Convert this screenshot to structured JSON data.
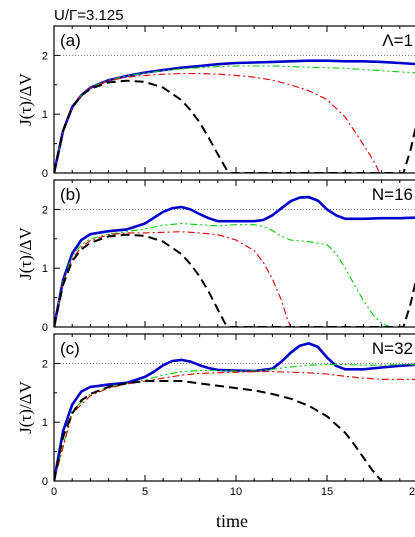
{
  "title": "U/Γ=3.125",
  "xlabel": "time",
  "ylabel": "J(τ)/ΔV",
  "chart_data": [
    {
      "type": "line",
      "panel_label": "(a)",
      "annotation": "Λ=1",
      "xlim": [
        0,
        20
      ],
      "ylim": [
        0,
        2.5
      ],
      "x_ticks": [
        "0",
        "5",
        "10",
        "15",
        "2"
      ],
      "y_ticks": [
        "0",
        "1",
        "2"
      ],
      "reference_line": 2,
      "series": [
        {
          "color": "#0000cc",
          "style": "solid",
          "x": [
            0,
            0.5,
            1,
            1.5,
            2,
            3,
            4,
            5,
            6,
            7,
            8,
            9,
            10,
            11,
            12,
            13,
            14,
            15,
            16,
            17,
            18,
            19,
            20
          ],
          "y": [
            0,
            0.72,
            1.12,
            1.32,
            1.45,
            1.58,
            1.65,
            1.71,
            1.75,
            1.79,
            1.82,
            1.85,
            1.87,
            1.88,
            1.89,
            1.9,
            1.91,
            1.91,
            1.9,
            1.9,
            1.89,
            1.87,
            1.85
          ]
        },
        {
          "color": "#00cc00",
          "style": "dash-dot-dot",
          "x": [
            0,
            0.5,
            1,
            1.5,
            2,
            3,
            4,
            5,
            6,
            7,
            8,
            9,
            10,
            11,
            12,
            13,
            14,
            15,
            16,
            17,
            18,
            19,
            20
          ],
          "y": [
            0,
            0.72,
            1.12,
            1.32,
            1.45,
            1.58,
            1.65,
            1.7,
            1.74,
            1.77,
            1.79,
            1.81,
            1.82,
            1.82,
            1.82,
            1.81,
            1.8,
            1.79,
            1.78,
            1.76,
            1.74,
            1.72,
            1.7
          ]
        },
        {
          "color": "#dd0000",
          "style": "dash-dot",
          "x": [
            0,
            0.5,
            1,
            1.5,
            2,
            3,
            4,
            5,
            6,
            7,
            8,
            9,
            10,
            11,
            12,
            13,
            14,
            15,
            16,
            16.5,
            17,
            17.5,
            17.9
          ],
          "y": [
            0,
            0.72,
            1.12,
            1.32,
            1.45,
            1.57,
            1.63,
            1.66,
            1.68,
            1.69,
            1.69,
            1.68,
            1.66,
            1.63,
            1.58,
            1.5,
            1.4,
            1.25,
            0.95,
            0.72,
            0.48,
            0.24,
            0
          ]
        },
        {
          "color": "#000000",
          "style": "dashed",
          "x": [
            0,
            0.5,
            1,
            1.5,
            2,
            3,
            4,
            5,
            6,
            7,
            7.5,
            8,
            8.5,
            9,
            9.5,
            9.7,
            19.2,
            19.6,
            20
          ],
          "y": [
            0,
            0.72,
            1.12,
            1.32,
            1.43,
            1.54,
            1.57,
            1.55,
            1.45,
            1.24,
            1.07,
            0.86,
            0.6,
            0.32,
            0.05,
            0,
            0,
            0.4,
            0.95
          ]
        }
      ]
    },
    {
      "type": "line",
      "panel_label": "(b)",
      "annotation": "N=16",
      "xlim": [
        0,
        20
      ],
      "ylim": [
        0,
        2.5
      ],
      "x_ticks": [
        "0",
        "5",
        "10",
        "15",
        "2"
      ],
      "y_ticks": [
        "0",
        "1",
        "2"
      ],
      "reference_line": 2,
      "series": [
        {
          "color": "#0000cc",
          "style": "solid",
          "x": [
            0,
            0.5,
            1,
            1.5,
            2,
            3,
            4,
            5,
            5.5,
            6,
            6.5,
            7,
            7.5,
            8,
            8.5,
            9,
            10,
            11,
            11.5,
            12,
            12.5,
            13,
            13.5,
            14,
            14.5,
            15,
            15.5,
            16,
            17,
            18,
            19,
            20
          ],
          "y": [
            0,
            0.8,
            1.25,
            1.48,
            1.58,
            1.63,
            1.66,
            1.76,
            1.86,
            1.96,
            2.02,
            2.04,
            2.0,
            1.92,
            1.85,
            1.8,
            1.8,
            1.8,
            1.82,
            1.9,
            2.02,
            2.14,
            2.2,
            2.21,
            2.15,
            2.0,
            1.9,
            1.84,
            1.84,
            1.85,
            1.85,
            1.86
          ]
        },
        {
          "color": "#00cc00",
          "style": "dash-dot-dot",
          "x": [
            0,
            0.5,
            1,
            1.5,
            2,
            3,
            4,
            5,
            6,
            7,
            8,
            9,
            10,
            11,
            11.5,
            12,
            12.5,
            13,
            14,
            15,
            15.5,
            16,
            16.5,
            17,
            17.5,
            18,
            18.5,
            19
          ],
          "y": [
            0,
            0.78,
            1.2,
            1.4,
            1.5,
            1.58,
            1.62,
            1.67,
            1.73,
            1.76,
            1.74,
            1.72,
            1.74,
            1.74,
            1.71,
            1.64,
            1.54,
            1.48,
            1.45,
            1.4,
            1.25,
            1.0,
            0.72,
            0.45,
            0.22,
            0.06,
            0,
            0
          ]
        },
        {
          "color": "#dd0000",
          "style": "dash-dot",
          "x": [
            0,
            0.5,
            1,
            1.5,
            2,
            3,
            4,
            5,
            6,
            7,
            8,
            9,
            10,
            11,
            11.5,
            12,
            12.5,
            12.8,
            13
          ],
          "y": [
            0,
            0.75,
            1.15,
            1.36,
            1.47,
            1.57,
            1.6,
            1.6,
            1.61,
            1.62,
            1.6,
            1.57,
            1.48,
            1.3,
            1.1,
            0.82,
            0.45,
            0.15,
            0
          ]
        },
        {
          "color": "#000000",
          "style": "dashed",
          "x": [
            0,
            0.5,
            1,
            1.5,
            2,
            3,
            4,
            5,
            6,
            7,
            7.5,
            8,
            8.5,
            9,
            9.4,
            9.6,
            19.2,
            19.6,
            20
          ],
          "y": [
            0,
            0.72,
            1.12,
            1.32,
            1.43,
            1.54,
            1.57,
            1.55,
            1.45,
            1.24,
            1.07,
            0.86,
            0.6,
            0.3,
            0.06,
            0,
            0,
            0.4,
            0.95
          ]
        }
      ]
    },
    {
      "type": "line",
      "panel_label": "(c)",
      "annotation": "N=32",
      "xlim": [
        0,
        20
      ],
      "ylim": [
        0,
        2.5
      ],
      "x_ticks": [
        "0",
        "5",
        "10",
        "15",
        "2"
      ],
      "y_ticks": [
        "0",
        "1",
        "2"
      ],
      "reference_line": 2,
      "series": [
        {
          "color": "#0000cc",
          "style": "solid",
          "x": [
            0,
            0.5,
            1,
            1.5,
            2,
            3,
            4,
            5,
            5.5,
            6,
            6.5,
            7,
            7.5,
            8,
            8.5,
            9,
            10,
            11,
            12,
            12.5,
            13,
            13.5,
            14,
            14.5,
            15,
            15.5,
            16,
            17,
            18,
            19,
            20
          ],
          "y": [
            0,
            0.85,
            1.3,
            1.52,
            1.6,
            1.64,
            1.67,
            1.77,
            1.86,
            1.97,
            2.04,
            2.06,
            2.03,
            1.97,
            1.92,
            1.89,
            1.88,
            1.87,
            1.91,
            2.03,
            2.18,
            2.3,
            2.34,
            2.28,
            2.1,
            1.96,
            1.9,
            1.9,
            1.93,
            1.96,
            1.98
          ]
        },
        {
          "color": "#00cc00",
          "style": "dash-dot-dot",
          "x": [
            0,
            1,
            2,
            3,
            4,
            5,
            6,
            7,
            8,
            9,
            10,
            11,
            12,
            13,
            14,
            15,
            16,
            17,
            18,
            19,
            20
          ],
          "y": [
            0,
            1.2,
            1.48,
            1.6,
            1.66,
            1.72,
            1.8,
            1.86,
            1.88,
            1.88,
            1.87,
            1.87,
            1.9,
            1.94,
            1.97,
            1.98,
            1.98,
            1.97,
            1.97,
            1.98,
            1.98
          ]
        },
        {
          "color": "#dd0000",
          "style": "dash-dot",
          "x": [
            0,
            1,
            2,
            3,
            4,
            5,
            6,
            7,
            8,
            9,
            10,
            11,
            12,
            13,
            14,
            15,
            16,
            17,
            18,
            19,
            20
          ],
          "y": [
            0,
            1.15,
            1.45,
            1.58,
            1.65,
            1.7,
            1.75,
            1.8,
            1.83,
            1.84,
            1.85,
            1.86,
            1.86,
            1.85,
            1.84,
            1.82,
            1.78,
            1.75,
            1.73,
            1.73,
            1.73
          ]
        },
        {
          "color": "#000000",
          "style": "dashed",
          "x": [
            0,
            0.5,
            1,
            1.5,
            2,
            3,
            4,
            5,
            6,
            7,
            8,
            9,
            10,
            11,
            12,
            13,
            14,
            15,
            16,
            16.5,
            17,
            17.5,
            18
          ],
          "y": [
            0,
            0.75,
            1.15,
            1.37,
            1.48,
            1.6,
            1.66,
            1.7,
            1.7,
            1.7,
            1.66,
            1.62,
            1.58,
            1.54,
            1.48,
            1.4,
            1.28,
            1.1,
            0.82,
            0.62,
            0.4,
            0.18,
            0
          ]
        }
      ]
    }
  ]
}
